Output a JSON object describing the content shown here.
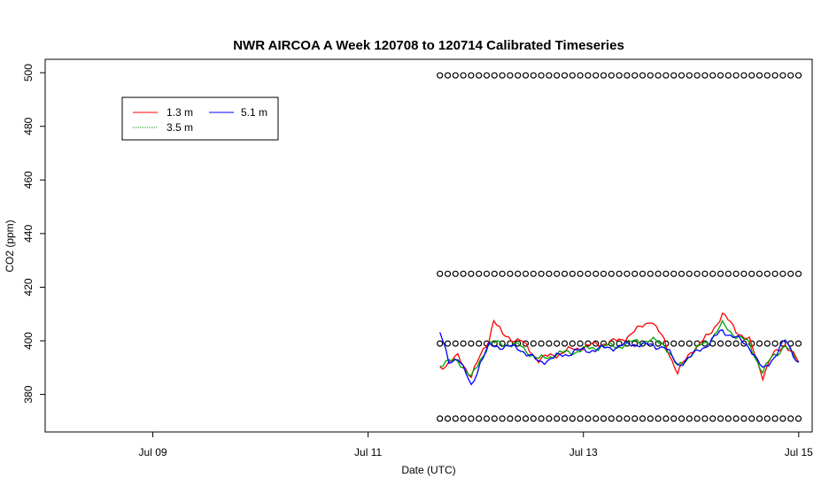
{
  "chart_data": {
    "type": "line",
    "title": "NWR AIRCOA A  Week 120708 to 120714  Calibrated Timeseries",
    "xlabel": "Date (UTC)",
    "ylabel": "CO2 (ppm)",
    "x_is_date": true,
    "xlim": [
      "2012-07-08T00:00",
      "2012-07-15T03:00"
    ],
    "ylim": [
      366,
      505
    ],
    "x_ticks": [
      {
        "label": "Jul 09",
        "value": "2012-07-09T00:00"
      },
      {
        "label": "Jul 11",
        "value": "2012-07-11T00:00"
      },
      {
        "label": "Jul 13",
        "value": "2012-07-13T00:00"
      },
      {
        "label": "Jul 15",
        "value": "2012-07-15T00:00"
      }
    ],
    "y_ticks": [
      380,
      400,
      420,
      440,
      460,
      480,
      500
    ],
    "legend": {
      "position": "top-left",
      "entries": [
        "1.3 m",
        "3.5 m",
        "5.1 m"
      ]
    },
    "colors": {
      "1.3 m": "#ff0000",
      "3.5 m": "#00a000",
      "5.1 m": "#0000ff",
      "markers": "#000000"
    },
    "series": [
      {
        "name": "1.3 m",
        "x": [
          "2012-07-11T16:00",
          "2012-07-11T20:00",
          "2012-07-11T23:00",
          "2012-07-12T01:00",
          "2012-07-12T03:00",
          "2012-07-12T04:00",
          "2012-07-12T06:00",
          "2012-07-12T10:00",
          "2012-07-12T14:00",
          "2012-07-12T18:00",
          "2012-07-12T22:00",
          "2012-07-13T04:00",
          "2012-07-13T08:00",
          "2012-07-13T12:00",
          "2012-07-13T15:00",
          "2012-07-13T18:00",
          "2012-07-13T21:00",
          "2012-07-14T00:00",
          "2012-07-14T02:00",
          "2012-07-14T04:00",
          "2012-07-14T07:00",
          "2012-07-14T10:00",
          "2012-07-14T13:00",
          "2012-07-14T16:00",
          "2012-07-14T18:00",
          "2012-07-14T21:00",
          "2012-07-15T00:00"
        ],
        "values": [
          390,
          394,
          387,
          394,
          401,
          408,
          402,
          400,
          393,
          395,
          397,
          399,
          400,
          404,
          408,
          400,
          388,
          396,
          399,
          402,
          410,
          404,
          400,
          387,
          394,
          399,
          392
        ]
      },
      {
        "name": "3.5 m",
        "x": [
          "2012-07-11T16:00",
          "2012-07-11T20:00",
          "2012-07-11T23:00",
          "2012-07-12T01:00",
          "2012-07-12T03:00",
          "2012-07-12T06:00",
          "2012-07-12T10:00",
          "2012-07-12T14:00",
          "2012-07-12T18:00",
          "2012-07-12T22:00",
          "2012-07-13T04:00",
          "2012-07-13T08:00",
          "2012-07-13T12:00",
          "2012-07-13T15:00",
          "2012-07-13T18:00",
          "2012-07-13T21:00",
          "2012-07-14T00:00",
          "2012-07-14T02:00",
          "2012-07-14T04:00",
          "2012-07-14T07:00",
          "2012-07-14T10:00",
          "2012-07-14T13:00",
          "2012-07-14T16:00",
          "2012-07-14T18:00",
          "2012-07-14T21:00",
          "2012-07-15T00:00"
        ],
        "values": [
          391,
          393,
          386,
          393,
          399,
          399,
          398,
          393,
          395,
          396,
          398,
          398,
          400,
          400,
          399,
          390,
          395,
          398,
          400,
          406,
          402,
          399,
          388,
          394,
          398,
          392
        ]
      },
      {
        "name": "5.1 m",
        "x": [
          "2012-07-11T16:00",
          "2012-07-11T18:00",
          "2012-07-11T20:00",
          "2012-07-11T23:00",
          "2012-07-12T01:00",
          "2012-07-12T03:00",
          "2012-07-12T06:00",
          "2012-07-12T10:00",
          "2012-07-12T14:00",
          "2012-07-12T18:00",
          "2012-07-12T22:00",
          "2012-07-13T04:00",
          "2012-07-13T08:00",
          "2012-07-13T12:00",
          "2012-07-13T15:00",
          "2012-07-13T18:00",
          "2012-07-13T21:00",
          "2012-07-14T00:00",
          "2012-07-14T02:00",
          "2012-07-14T04:00",
          "2012-07-14T07:00",
          "2012-07-14T10:00",
          "2012-07-14T13:00",
          "2012-07-14T16:00",
          "2012-07-14T18:00",
          "2012-07-14T21:00",
          "2012-07-15T00:00"
        ],
        "values": [
          403,
          392,
          394,
          383,
          392,
          398,
          398,
          397,
          392,
          394,
          396,
          397,
          398,
          399,
          398,
          398,
          391,
          394,
          397,
          399,
          404,
          401,
          398,
          389,
          393,
          400,
          392
        ]
      }
    ],
    "marker_rows": [
      {
        "y": 499,
        "x_start": "2012-07-11T16:00",
        "x_end": "2012-07-15T00:00"
      },
      {
        "y": 425,
        "x_start": "2012-07-11T16:00",
        "x_end": "2012-07-15T00:00"
      },
      {
        "y": 399,
        "x_start": "2012-07-11T16:00",
        "x_end": "2012-07-15T00:00"
      },
      {
        "y": 371,
        "x_start": "2012-07-11T16:00",
        "x_end": "2012-07-15T00:00"
      }
    ]
  }
}
